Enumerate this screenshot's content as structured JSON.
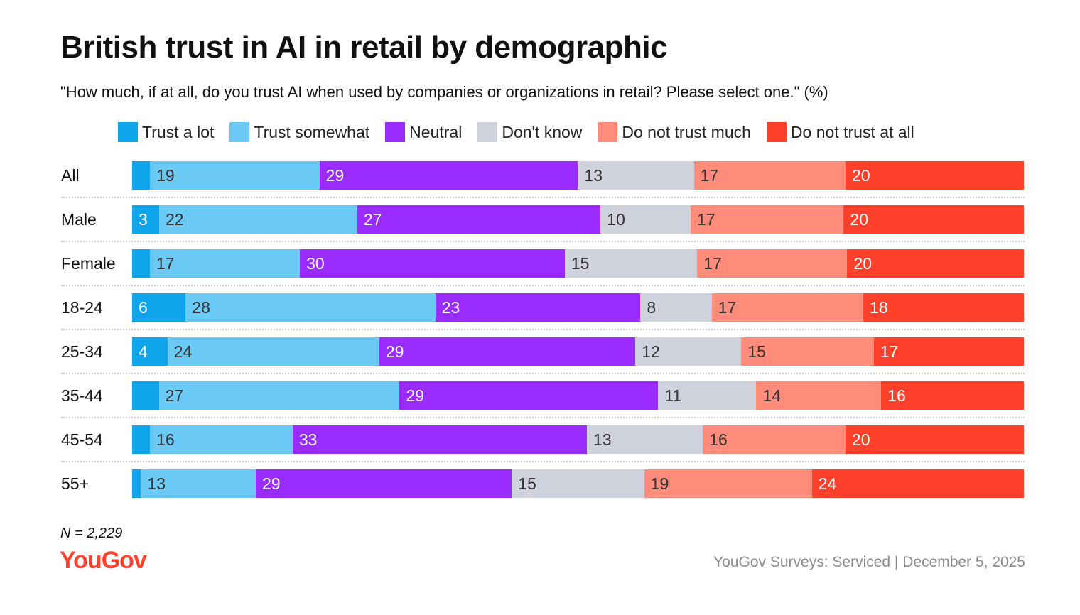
{
  "chart_data": {
    "type": "bar",
    "orientation": "horizontal-stacked-100",
    "title": "British trust in AI in retail by demographic",
    "subtitle": "\"How much, if at all, do you trust AI when used by companies or organizations in retail? Please select one.\" (%)",
    "categories": [
      "All",
      "Male",
      "Female",
      "18-24",
      "25-34",
      "35-44",
      "45-54",
      "55+"
    ],
    "series": [
      {
        "name": "Trust a lot",
        "color": "#0ea5ec",
        "text": "#ffffff",
        "values": [
          2,
          3,
          2,
          6,
          4,
          3,
          2,
          1
        ],
        "labeled": [
          false,
          true,
          false,
          true,
          true,
          false,
          false,
          false
        ]
      },
      {
        "name": "Trust somewhat",
        "color": "#6bc9f5",
        "text": "#333333",
        "values": [
          19,
          22,
          17,
          28,
          24,
          27,
          16,
          13
        ],
        "labeled": [
          true,
          true,
          true,
          true,
          true,
          true,
          true,
          true
        ]
      },
      {
        "name": "Neutral",
        "color": "#9b2cff",
        "text": "#ffffff",
        "values": [
          29,
          27,
          30,
          23,
          29,
          29,
          33,
          29
        ],
        "labeled": [
          true,
          true,
          true,
          true,
          true,
          true,
          true,
          true
        ]
      },
      {
        "name": "Don't know",
        "color": "#cfd1dc",
        "text": "#333333",
        "values": [
          13,
          10,
          15,
          8,
          12,
          11,
          13,
          15
        ],
        "labeled": [
          true,
          true,
          true,
          true,
          true,
          true,
          true,
          true
        ]
      },
      {
        "name": "Do not trust much",
        "color": "#ff8c7b",
        "text": "#333333",
        "values": [
          17,
          17,
          17,
          17,
          15,
          14,
          16,
          19
        ],
        "labeled": [
          true,
          true,
          true,
          true,
          true,
          true,
          true,
          true
        ]
      },
      {
        "name": "Do not trust at all",
        "color": "#ff412c",
        "text": "#ffffff",
        "values": [
          20,
          20,
          20,
          18,
          17,
          16,
          20,
          24
        ],
        "labeled": [
          true,
          true,
          true,
          true,
          true,
          true,
          true,
          true
        ]
      }
    ],
    "legend_position": "top",
    "xlim": [
      0,
      100
    ]
  },
  "note": "N = 2,229",
  "logo": "YouGov",
  "footer": "YouGov Surveys: Serviced | December 5, 2025"
}
